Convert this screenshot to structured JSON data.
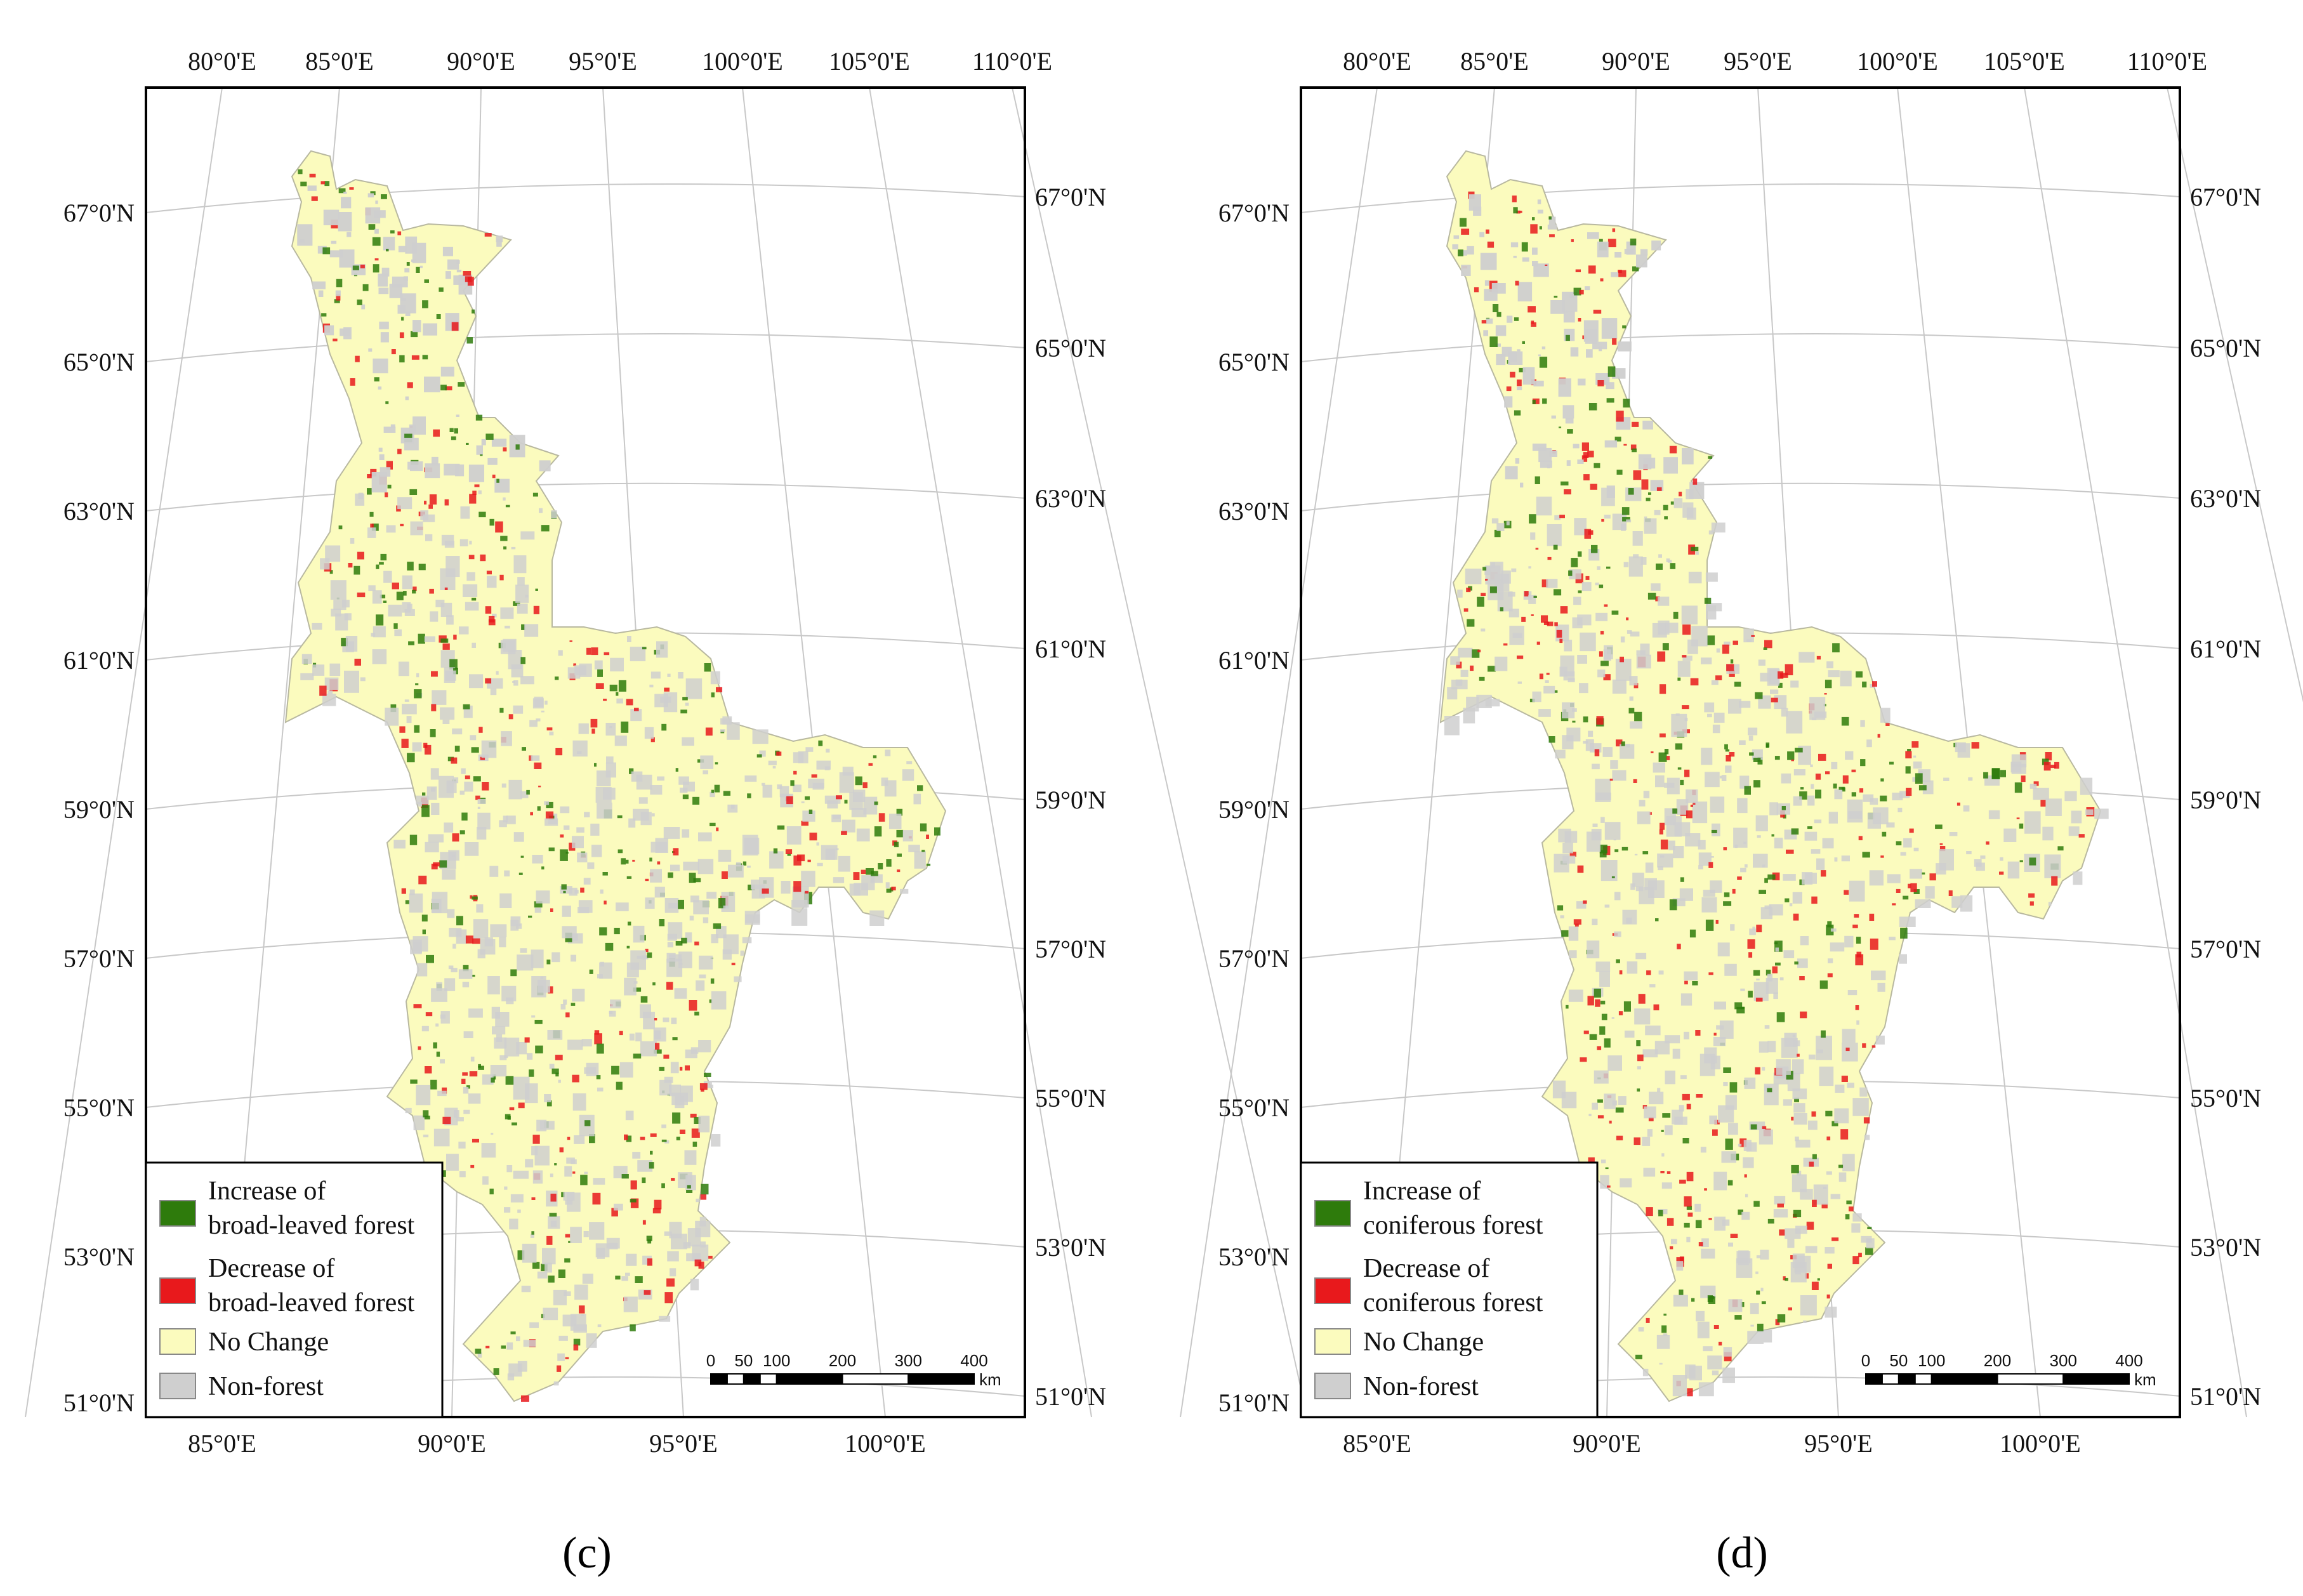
{
  "panels": [
    {
      "id": "c",
      "caption": "(c)",
      "top_lon_labels": [
        "80°0'E",
        "85°0'E",
        "90°0'E",
        "95°0'E",
        "100°0'E",
        "105°0'E",
        "110°0'E"
      ],
      "bottom_lon_labels": [
        "85°0'E",
        "90°0'E",
        "95°0'E",
        "100°0'E"
      ],
      "left_lat_labels": [
        "67°0'N",
        "65°0'N",
        "63°0'N",
        "61°0'N",
        "59°0'N",
        "57°0'N",
        "55°0'N",
        "53°0'N",
        "51°0'N"
      ],
      "right_lat_labels": [
        "67°0'N",
        "65°0'N",
        "63°0'N",
        "61°0'N",
        "59°0'N",
        "57°0'N",
        "55°0'N",
        "53°0'N",
        "51°0'N"
      ],
      "legend": [
        {
          "line1": "Increase of",
          "line2": "broad-leaved forest",
          "color": "#2e7b0c"
        },
        {
          "line1": "Decrease of",
          "line2": "broad-leaved forest",
          "color": "#e8191c"
        },
        {
          "line1": "No Change",
          "line2": "",
          "color": "#fbfbbe"
        },
        {
          "line1": "Non-forest",
          "line2": "",
          "color": "#cfcfcf"
        }
      ],
      "scalebar": {
        "ticks": [
          "0",
          "50",
          "100",
          "200",
          "300",
          "400"
        ],
        "unit": "km"
      }
    },
    {
      "id": "d",
      "caption": "(d)",
      "top_lon_labels": [
        "80°0'E",
        "85°0'E",
        "90°0'E",
        "95°0'E",
        "100°0'E",
        "105°0'E",
        "110°0'E"
      ],
      "bottom_lon_labels": [
        "85°0'E",
        "90°0'E",
        "95°0'E",
        "100°0'E"
      ],
      "left_lat_labels": [
        "67°0'N",
        "65°0'N",
        "63°0'N",
        "61°0'N",
        "59°0'N",
        "57°0'N",
        "55°0'N",
        "53°0'N",
        "51°0'N"
      ],
      "right_lat_labels": [
        "67°0'N",
        "65°0'N",
        "63°0'N",
        "61°0'N",
        "59°0'N",
        "57°0'N",
        "55°0'N",
        "53°0'N",
        "51°0'N"
      ],
      "legend": [
        {
          "line1": "Increase of",
          "line2": "coniferous forest",
          "color": "#2e7b0c"
        },
        {
          "line1": "Decrease of",
          "line2": "coniferous forest",
          "color": "#e8191c"
        },
        {
          "line1": "No Change",
          "line2": "",
          "color": "#fbfbbe"
        },
        {
          "line1": "Non-forest",
          "line2": "",
          "color": "#cfcfcf"
        }
      ],
      "scalebar": {
        "ticks": [
          "0",
          "50",
          "100",
          "200",
          "300",
          "400"
        ],
        "unit": "km"
      }
    }
  ]
}
